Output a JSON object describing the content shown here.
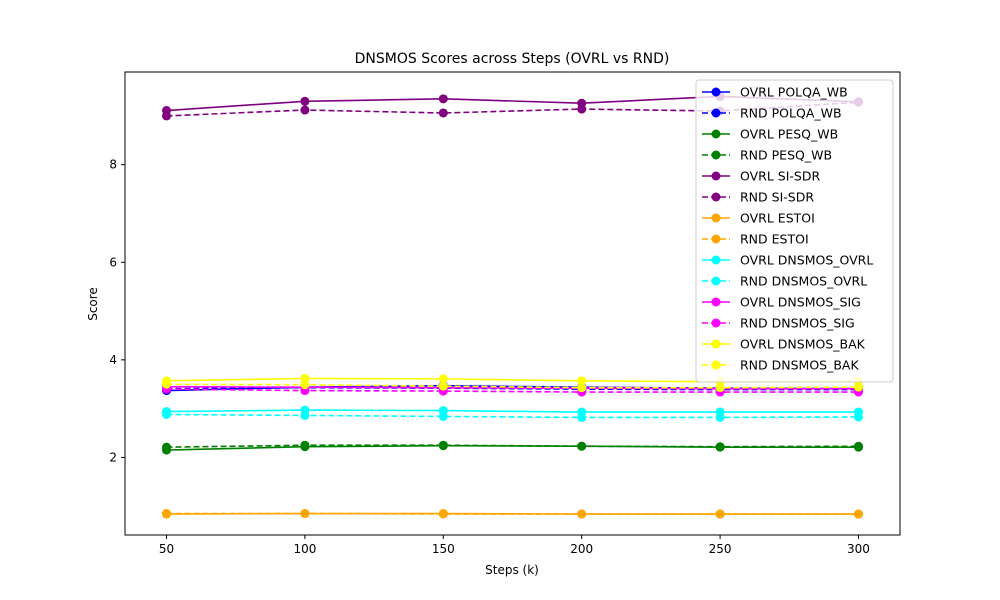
{
  "chart_data": {
    "type": "line",
    "title": "DNSMOS Scores across Steps (OVRL vs RND)",
    "xlabel": "Steps (k)",
    "ylabel": "Score",
    "x": [
      50,
      100,
      150,
      200,
      250,
      300
    ],
    "xticks": [
      "50",
      "100",
      "150",
      "200",
      "250",
      "300"
    ],
    "yticks": [
      "2",
      "4",
      "6",
      "8"
    ],
    "xlim": [
      35,
      315
    ],
    "ylim": [
      0.41,
      9.9
    ],
    "grid": false,
    "legend_position": "top-right",
    "series": [
      {
        "name": "OVRL POLQA_WB",
        "color": "#0000ff",
        "style": "solid",
        "values": [
          3.37,
          3.44,
          3.47,
          3.44,
          3.42,
          3.41
        ]
      },
      {
        "name": "RND POLQA_WB",
        "color": "#0000ff",
        "style": "dashed",
        "values": [
          3.41,
          3.43,
          3.42,
          3.4,
          3.39,
          3.39
        ]
      },
      {
        "name": "OVRL PESQ_WB",
        "color": "#008000",
        "style": "solid",
        "values": [
          2.15,
          2.22,
          2.24,
          2.23,
          2.21,
          2.21
        ]
      },
      {
        "name": "RND PESQ_WB",
        "color": "#008000",
        "style": "dashed",
        "values": [
          2.21,
          2.25,
          2.25,
          2.23,
          2.22,
          2.23
        ]
      },
      {
        "name": "OVRL SI-SDR",
        "color": "#800080",
        "style": "solid",
        "values": [
          9.11,
          9.3,
          9.35,
          9.26,
          9.4,
          9.29
        ]
      },
      {
        "name": "RND SI-SDR",
        "color": "#800080",
        "style": "dashed",
        "values": [
          9.0,
          9.12,
          9.06,
          9.14,
          9.1,
          9.28
        ]
      },
      {
        "name": "OVRL ESTOI",
        "color": "#ffa500",
        "style": "solid",
        "values": [
          0.84,
          0.85,
          0.85,
          0.84,
          0.84,
          0.84
        ]
      },
      {
        "name": "RND ESTOI",
        "color": "#ffa500",
        "style": "dashed",
        "values": [
          0.85,
          0.85,
          0.84,
          0.84,
          0.84,
          0.84
        ]
      },
      {
        "name": "OVRL DNSMOS_OVRL",
        "color": "#00ffff",
        "style": "solid",
        "values": [
          2.94,
          2.97,
          2.96,
          2.93,
          2.93,
          2.93
        ]
      },
      {
        "name": "RND DNSMOS_OVRL",
        "color": "#00ffff",
        "style": "dashed",
        "values": [
          2.88,
          2.86,
          2.84,
          2.82,
          2.82,
          2.83
        ]
      },
      {
        "name": "OVRL DNSMOS_SIG",
        "color": "#ff00ff",
        "style": "solid",
        "values": [
          3.45,
          3.44,
          3.43,
          3.42,
          3.41,
          3.41
        ]
      },
      {
        "name": "RND DNSMOS_SIG",
        "color": "#ff00ff",
        "style": "dashed",
        "values": [
          3.4,
          3.37,
          3.36,
          3.34,
          3.34,
          3.34
        ]
      },
      {
        "name": "OVRL DNSMOS_BAK",
        "color": "#ffff00",
        "style": "solid",
        "values": [
          3.57,
          3.62,
          3.61,
          3.57,
          3.55,
          3.56
        ]
      },
      {
        "name": "RND DNSMOS_BAK",
        "color": "#ffff00",
        "style": "dashed",
        "values": [
          3.5,
          3.49,
          3.46,
          3.43,
          3.43,
          3.44
        ]
      }
    ]
  }
}
